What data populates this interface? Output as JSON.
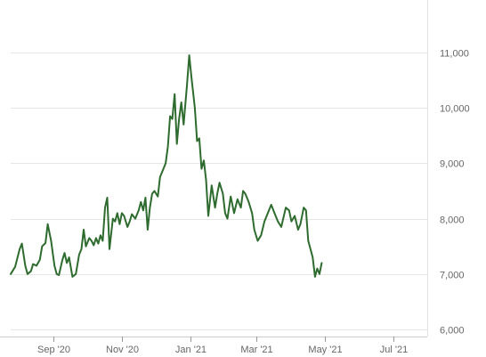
{
  "chart_data": {
    "type": "line",
    "title": "",
    "xlabel": "",
    "ylabel": "",
    "x_range": [
      "2020-07-25",
      "2021-07-31"
    ],
    "ylim": [
      6000,
      11400
    ],
    "y_axis_position": "right",
    "grid": "horizontal",
    "line_color": "#2e6b2e",
    "x_ticks": [
      {
        "date": "2020-09-01",
        "label": "Sep '20"
      },
      {
        "date": "2020-11-01",
        "label": "Nov '20"
      },
      {
        "date": "2021-01-01",
        "label": "Jan '21"
      },
      {
        "date": "2021-03-01",
        "label": "Mar '21"
      },
      {
        "date": "2021-05-01",
        "label": "May '21"
      },
      {
        "date": "2021-07-01",
        "label": "Jul '21"
      }
    ],
    "y_ticks": [
      {
        "value": 6000,
        "label": "6,000"
      },
      {
        "value": 7000,
        "label": "7,000"
      },
      {
        "value": 8000,
        "label": "8,000"
      },
      {
        "value": 9000,
        "label": "9,000"
      },
      {
        "value": 10000,
        "label": "10,000"
      },
      {
        "value": 11000,
        "label": "11,000"
      }
    ],
    "series": [
      {
        "points": [
          [
            "2020-07-25",
            7000
          ],
          [
            "2020-07-29",
            7130
          ],
          [
            "2020-08-02",
            7450
          ],
          [
            "2020-08-04",
            7550
          ],
          [
            "2020-08-07",
            7150
          ],
          [
            "2020-08-09",
            7000
          ],
          [
            "2020-08-12",
            7050
          ],
          [
            "2020-08-14",
            7180
          ],
          [
            "2020-08-17",
            7150
          ],
          [
            "2020-08-20",
            7260
          ],
          [
            "2020-08-22",
            7500
          ],
          [
            "2020-08-25",
            7560
          ],
          [
            "2020-08-27",
            7900
          ],
          [
            "2020-08-30",
            7600
          ],
          [
            "2020-09-02",
            7150
          ],
          [
            "2020-09-04",
            7000
          ],
          [
            "2020-09-06",
            6980
          ],
          [
            "2020-09-09",
            7250
          ],
          [
            "2020-09-11",
            7380
          ],
          [
            "2020-09-13",
            7200
          ],
          [
            "2020-09-15",
            7300
          ],
          [
            "2020-09-18",
            6950
          ],
          [
            "2020-09-21",
            7000
          ],
          [
            "2020-09-24",
            7350
          ],
          [
            "2020-09-26",
            7450
          ],
          [
            "2020-09-28",
            7800
          ],
          [
            "2020-09-30",
            7500
          ],
          [
            "2020-10-03",
            7650
          ],
          [
            "2020-10-05",
            7600
          ],
          [
            "2020-10-07",
            7520
          ],
          [
            "2020-10-09",
            7650
          ],
          [
            "2020-10-11",
            7550
          ],
          [
            "2020-10-13",
            7700
          ],
          [
            "2020-10-15",
            7600
          ],
          [
            "2020-10-17",
            8200
          ],
          [
            "2020-10-19",
            8380
          ],
          [
            "2020-10-21",
            7450
          ],
          [
            "2020-10-24",
            8000
          ],
          [
            "2020-10-26",
            7950
          ],
          [
            "2020-10-28",
            8100
          ],
          [
            "2020-10-30",
            7900
          ],
          [
            "2020-11-01",
            8100
          ],
          [
            "2020-11-03",
            8050
          ],
          [
            "2020-11-06",
            7850
          ],
          [
            "2020-11-08",
            7950
          ],
          [
            "2020-11-10",
            8080
          ],
          [
            "2020-11-13",
            8000
          ],
          [
            "2020-11-16",
            8150
          ],
          [
            "2020-11-18",
            8300
          ],
          [
            "2020-11-20",
            8150
          ],
          [
            "2020-11-22",
            8380
          ],
          [
            "2020-11-24",
            7800
          ],
          [
            "2020-11-26",
            8200
          ],
          [
            "2020-11-28",
            8450
          ],
          [
            "2020-11-30",
            8500
          ],
          [
            "2020-12-03",
            8400
          ],
          [
            "2020-12-05",
            8750
          ],
          [
            "2020-12-08",
            8900
          ],
          [
            "2020-12-10",
            9000
          ],
          [
            "2020-12-12",
            9300
          ],
          [
            "2020-12-14",
            9850
          ],
          [
            "2020-12-16",
            9800
          ],
          [
            "2020-12-18",
            10250
          ],
          [
            "2020-12-20",
            9350
          ],
          [
            "2020-12-22",
            9800
          ],
          [
            "2020-12-24",
            10100
          ],
          [
            "2020-12-26",
            9700
          ],
          [
            "2020-12-29",
            10400
          ],
          [
            "2020-12-31",
            10950
          ],
          [
            "2021-01-02",
            10550
          ],
          [
            "2021-01-05",
            10000
          ],
          [
            "2021-01-07",
            9400
          ],
          [
            "2021-01-09",
            9450
          ],
          [
            "2021-01-11",
            8900
          ],
          [
            "2021-01-13",
            9050
          ],
          [
            "2021-01-15",
            8700
          ],
          [
            "2021-01-17",
            8050
          ],
          [
            "2021-01-20",
            8600
          ],
          [
            "2021-01-23",
            8200
          ],
          [
            "2021-01-25",
            8450
          ],
          [
            "2021-01-27",
            8650
          ],
          [
            "2021-01-30",
            8450
          ],
          [
            "2021-02-01",
            8100
          ],
          [
            "2021-02-03",
            8000
          ],
          [
            "2021-02-06",
            8400
          ],
          [
            "2021-02-09",
            8100
          ],
          [
            "2021-02-12",
            8350
          ],
          [
            "2021-02-15",
            8200
          ],
          [
            "2021-02-17",
            8500
          ],
          [
            "2021-02-19",
            8450
          ],
          [
            "2021-02-22",
            8300
          ],
          [
            "2021-02-25",
            8100
          ],
          [
            "2021-02-27",
            7800
          ],
          [
            "2021-03-02",
            7600
          ],
          [
            "2021-03-05",
            7700
          ],
          [
            "2021-03-08",
            7950
          ],
          [
            "2021-03-11",
            8100
          ],
          [
            "2021-03-14",
            8250
          ],
          [
            "2021-03-17",
            8100
          ],
          [
            "2021-03-20",
            7950
          ],
          [
            "2021-03-23",
            7850
          ],
          [
            "2021-03-27",
            8200
          ],
          [
            "2021-03-30",
            8150
          ],
          [
            "2021-04-01",
            7950
          ],
          [
            "2021-04-04",
            8050
          ],
          [
            "2021-04-07",
            7800
          ],
          [
            "2021-04-09",
            7900
          ],
          [
            "2021-04-12",
            8200
          ],
          [
            "2021-04-14",
            8150
          ],
          [
            "2021-04-16",
            7600
          ],
          [
            "2021-04-18",
            7450
          ],
          [
            "2021-04-20",
            7300
          ],
          [
            "2021-04-22",
            6950
          ],
          [
            "2021-04-24",
            7100
          ],
          [
            "2021-04-26",
            7000
          ],
          [
            "2021-04-28",
            7200
          ]
        ]
      }
    ]
  }
}
